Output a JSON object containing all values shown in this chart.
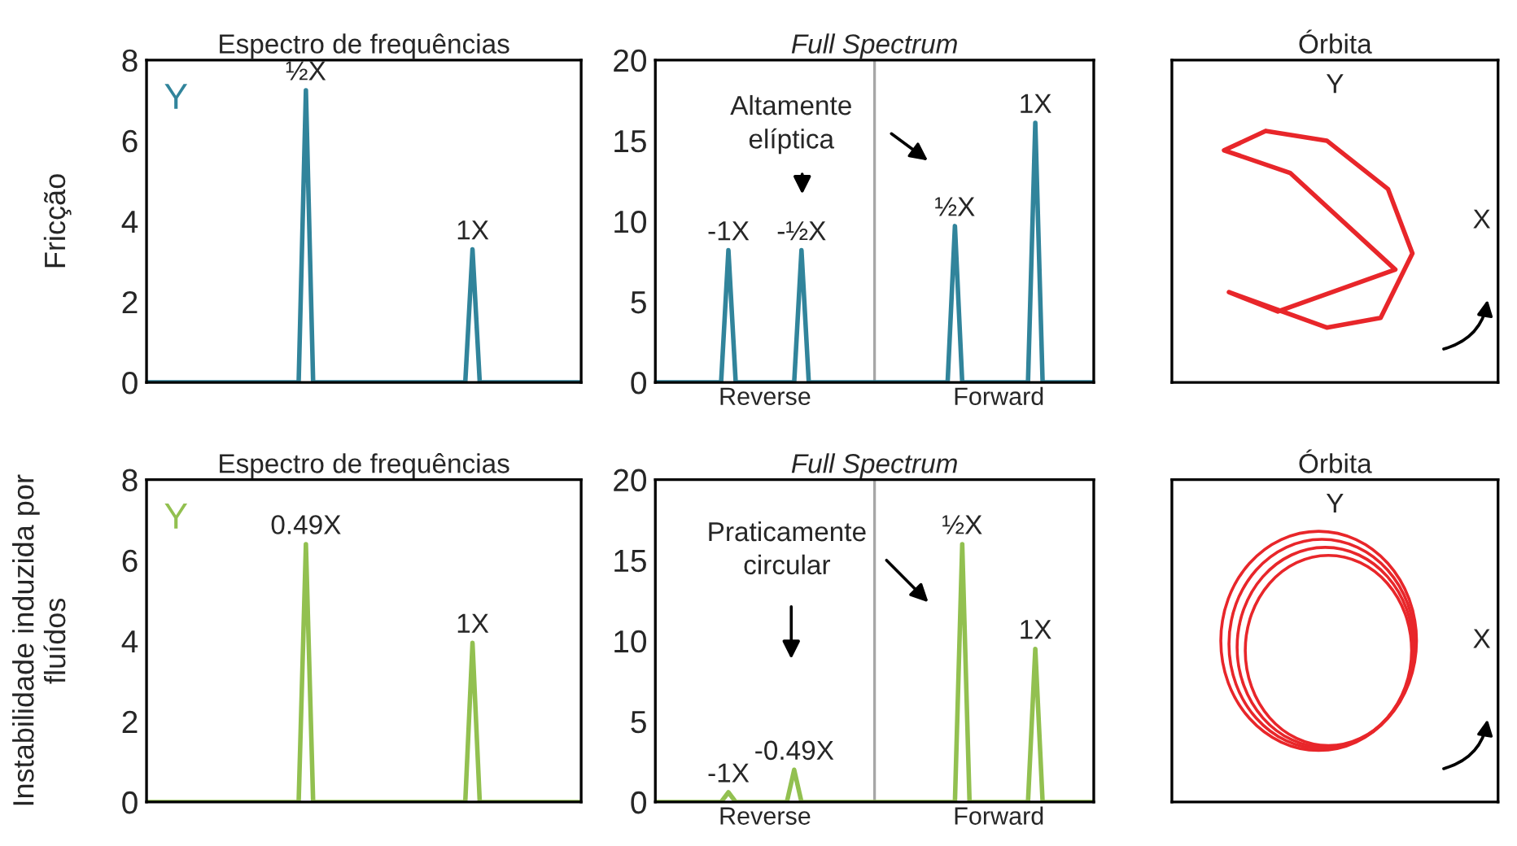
{
  "chart_data": [
    {
      "type": "line",
      "title": "Espectro de frequências",
      "ylabel": "Fricção",
      "ylim": [
        0,
        8
      ],
      "yticks": [
        0,
        2,
        4,
        6,
        8
      ],
      "tick_labels": "y",
      "annotations": [
        "Y",
        {
          "text": "½X",
          "y": 7.25
        },
        {
          "text": "1X",
          "y": 3.3
        }
      ],
      "categories": [
        null,
        null,
        null,
        null,
        null,
        null,
        null,
        null,
        null,
        null,
        null,
        null,
        null,
        null,
        null,
        null,
        null,
        null,
        null,
        null,
        null,
        null,
        null,
        null,
        null,
        null,
        null,
        null,
        null,
        null,
        null,
        null,
        null,
        null,
        null,
        null,
        null,
        null,
        null,
        null,
        null,
        null,
        null,
        null,
        null,
        null,
        null,
        null,
        null,
        null,
        null,
        null,
        null,
        null,
        null,
        null,
        null,
        null,
        null,
        null,
        null
      ],
      "series": [
        {
          "color": "#31849b",
          "values": [
            0,
            0,
            0,
            0,
            0,
            0,
            0,
            0,
            0,
            0,
            0,
            0,
            0,
            0,
            0,
            0,
            0,
            0,
            0,
            0,
            0,
            0,
            7.25,
            0,
            0,
            0,
            0,
            0,
            0,
            0,
            0,
            0,
            0,
            0,
            0,
            0,
            0,
            0,
            0,
            0,
            0,
            0,
            0,
            0,
            0,
            3.3,
            0,
            0,
            0,
            0,
            0,
            0,
            0,
            0,
            0,
            0,
            0,
            0,
            0,
            0,
            0
          ]
        }
      ]
    },
    {
      "type": "line",
      "title": "Full Spectrum",
      "ylim": [
        0,
        20
      ],
      "yticks": [
        0,
        5,
        10,
        15,
        20
      ],
      "annotations": [
        "Altamente\nelíptica",
        {
          "text": "-1X",
          "y": 8.2
        },
        {
          "text": "-½X",
          "y": 8.2
        },
        {
          "text": "½X",
          "y": 9.7
        },
        {
          "text": "1X",
          "y": 16.1
        }
      ],
      "categories": [
        null,
        null,
        null,
        null,
        null,
        null,
        null,
        null,
        null,
        null,
        null,
        null,
        null,
        null,
        null,
        "Reverse",
        null,
        null,
        null,
        null,
        null,
        null,
        null,
        null,
        null,
        null,
        null,
        null,
        null,
        null,
        null,
        null,
        null,
        null,
        null,
        null,
        null,
        null,
        null,
        null,
        null,
        null,
        null,
        null,
        null,
        null,
        null,
        "Forward",
        null,
        null,
        null,
        null,
        null,
        null,
        null,
        null,
        null,
        null,
        null,
        null,
        null
      ],
      "series": [
        {
          "color": "#31849b",
          "values": [
            0,
            0,
            0,
            0,
            0,
            0,
            0,
            0,
            0,
            0,
            8.2,
            0,
            0,
            0,
            0,
            0,
            0,
            0,
            0,
            0,
            8.2,
            0,
            0,
            0,
            0,
            0,
            0,
            0,
            0,
            0,
            0,
            0,
            0,
            0,
            0,
            0,
            0,
            0,
            0,
            0,
            0,
            9.7,
            0,
            0,
            0,
            0,
            0,
            0,
            0,
            0,
            0,
            0,
            16.1,
            0,
            0,
            0,
            0,
            0,
            0,
            0,
            0
          ]
        }
      ]
    },
    {
      "type": "other",
      "title": "Órbita",
      "annotations": [
        "Y",
        "X"
      ]
    },
    {
      "type": "line",
      "title": "Espectro de frequências",
      "ylabel": "Instabilidade induzida por fluídos",
      "ylim": [
        0,
        8
      ],
      "yticks": [
        0,
        2,
        4,
        6,
        8
      ],
      "tick_labels": "y",
      "annotations": [
        "Y",
        {
          "text": "0.49X",
          "y": 6.4
        },
        {
          "text": "1X",
          "y": 3.95
        }
      ],
      "categories": [
        null,
        null,
        null,
        null,
        null,
        null,
        null,
        null,
        null,
        null,
        null,
        null,
        null,
        null,
        null,
        null,
        null,
        null,
        null,
        null,
        null,
        null,
        null,
        null,
        null,
        null,
        null,
        null,
        null,
        null,
        null,
        null,
        null,
        null,
        null,
        null,
        null,
        null,
        null,
        null,
        null,
        null,
        null,
        null,
        null,
        null,
        null,
        null,
        null,
        null,
        null,
        null,
        null,
        null,
        null,
        null,
        null,
        null,
        null,
        null,
        null
      ],
      "series": [
        {
          "color": "#92c050",
          "values": [
            0,
            0,
            0,
            0,
            0,
            0,
            0,
            0,
            0,
            0,
            0,
            0,
            0,
            0,
            0,
            0,
            0,
            0,
            0,
            0,
            0,
            0,
            6.4,
            0,
            0,
            0,
            0,
            0,
            0,
            0,
            0,
            0,
            0,
            0,
            0,
            0,
            0,
            0,
            0,
            0,
            0,
            0,
            0,
            0,
            0,
            3.95,
            0,
            0,
            0,
            0,
            0,
            0,
            0,
            0,
            0,
            0,
            0,
            0,
            0,
            0,
            0
          ]
        }
      ]
    },
    {
      "type": "line",
      "title": "Full Spectrum",
      "ylim": [
        0,
        20
      ],
      "yticks": [
        0,
        5,
        10,
        15,
        20
      ],
      "annotations": [
        "Praticamente\ncircular",
        {
          "text": "-1X",
          "y": 0.6
        },
        {
          "text": "-0.49X",
          "y": 2.0
        },
        {
          "text": "½X",
          "y": 16.0
        },
        {
          "text": "1X",
          "y": 9.5
        }
      ],
      "categories": [
        null,
        null,
        null,
        null,
        null,
        null,
        null,
        null,
        null,
        null,
        null,
        null,
        null,
        null,
        null,
        "Reverse",
        null,
        null,
        null,
        null,
        null,
        null,
        null,
        null,
        null,
        null,
        null,
        null,
        null,
        null,
        null,
        null,
        null,
        null,
        null,
        null,
        null,
        null,
        null,
        null,
        null,
        null,
        null,
        null,
        null,
        null,
        null,
        "Forward",
        null,
        null,
        null,
        null,
        null,
        null,
        null,
        null,
        null,
        null,
        null,
        null,
        null
      ],
      "series": [
        {
          "color": "#92c050",
          "values": [
            0,
            0,
            0,
            0,
            0,
            0,
            0,
            0,
            0,
            0,
            0.6,
            0,
            0,
            0,
            0,
            0,
            0,
            0,
            0,
            2.0,
            0,
            0,
            0,
            0,
            0,
            0,
            0,
            0,
            0,
            0,
            0,
            0,
            0,
            0,
            0,
            0,
            0,
            0,
            0,
            0,
            0,
            0,
            16.0,
            0,
            0,
            0,
            0,
            0,
            0,
            0,
            0,
            0,
            9.5,
            0,
            0,
            0,
            0,
            0,
            0,
            0,
            0
          ]
        }
      ]
    },
    {
      "type": "other",
      "title": "Órbita",
      "annotations": [
        "Y",
        "X"
      ]
    }
  ]
}
